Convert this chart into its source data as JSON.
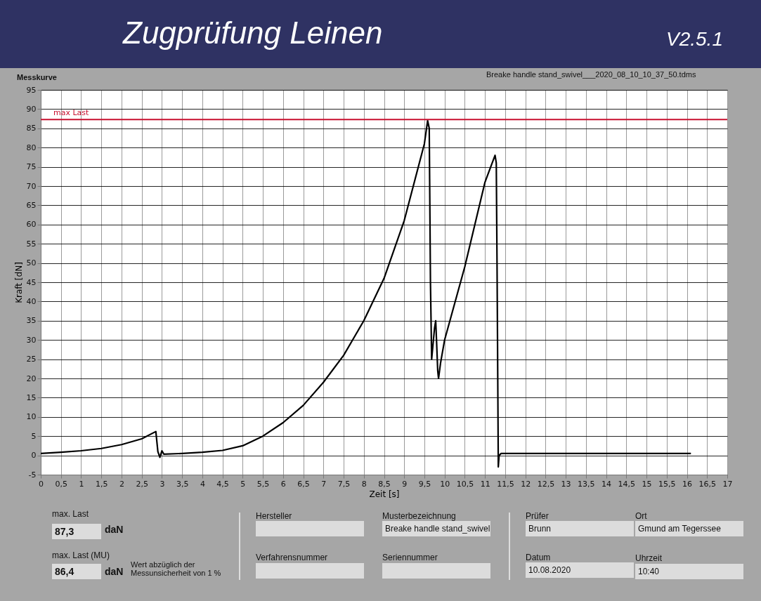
{
  "chart_data": {
    "type": "line",
    "title": "Zugprüfung Leinen",
    "xlabel": "Zeit [s]",
    "ylabel": "Kraft [dN]",
    "annotations": [
      "V2.5.1",
      "Messkurve",
      "Breake handle stand_swivel___2020_08_10_10_37_50.tdms",
      "max. Last",
      "87,3",
      "daN",
      "max. Last (MU)",
      "86,4",
      "daN",
      "Wert abzüglich der Messunsicherheit von 1 %",
      "Hersteller",
      "Musterbezeichnung",
      "Breake handle stand_swivel",
      "Prüfer",
      "Brunn",
      "Ort",
      "Gmund am Tegerssee",
      "Verfahrensnummer",
      "Seriennummer",
      "Datum",
      "10.08.2020",
      "Uhrzeit",
      "10:40"
    ],
    "x": [
      0,
      0.5,
      1,
      1.5,
      2,
      2.5,
      2.85,
      2.9,
      2.95,
      3.0,
      3.05,
      3.5,
      4,
      4.5,
      5,
      5.5,
      6,
      6.5,
      7,
      7.5,
      8,
      8.5,
      9,
      9.5,
      9.58,
      9.62,
      9.65,
      9.68,
      9.75,
      9.78,
      9.8,
      9.83,
      9.85,
      9.9,
      10,
      10.5,
      11,
      11.25,
      11.28,
      11.3,
      11.33,
      11.35,
      11.4,
      12,
      13,
      14,
      15,
      16.1
    ],
    "series": [
      {
        "color": "#000000",
        "values": [
          0.5,
          0.8,
          1.2,
          1.8,
          2.8,
          4.3,
          6.2,
          1,
          -0.5,
          1.2,
          0.3,
          0.5,
          0.8,
          1.3,
          2.5,
          5,
          8.5,
          13,
          19,
          26,
          35,
          46,
          61,
          81,
          87,
          85,
          45,
          25,
          33,
          35,
          30,
          22,
          20,
          24,
          30,
          49,
          71,
          78,
          76,
          48,
          -3,
          0,
          0.5,
          0.5,
          0.5,
          0.5,
          0.5,
          0.5
        ]
      }
    ],
    "xlim": [
      0,
      17
    ],
    "ylim": [
      -5,
      95
    ],
    "xticks": [
      0,
      {
        "value": 0.5,
        "label": "0,5"
      },
      1,
      {
        "value": 1.5,
        "label": "1,5"
      },
      2,
      {
        "value": 2.5,
        "label": "2,5"
      },
      3,
      {
        "value": 3.5,
        "label": "3,5"
      },
      4,
      {
        "value": 4.5,
        "label": "4,5"
      },
      5,
      {
        "value": 5.5,
        "label": "5,5"
      },
      6,
      {
        "value": 6.5,
        "label": "6,5"
      },
      7,
      {
        "value": 7.5,
        "label": "7,5"
      },
      8,
      {
        "value": 8.5,
        "label": "8,5"
      },
      9,
      {
        "value": 9.5,
        "label": "9,5"
      },
      10,
      {
        "value": 10.5,
        "label": "10,5"
      },
      11,
      {
        "value": 11.5,
        "label": "11,5"
      },
      12,
      {
        "value": 12.5,
        "label": "12,5"
      },
      13,
      {
        "value": 13.5,
        "label": "13,5"
      },
      14,
      {
        "value": 14.5,
        "label": "14,5"
      },
      15,
      {
        "value": 15.5,
        "label": "15,5"
      },
      16,
      {
        "value": 16.5,
        "label": "16,5"
      },
      17
    ],
    "yticks": [
      -5,
      0,
      5,
      10,
      15,
      20,
      25,
      30,
      35,
      40,
      45,
      50,
      55,
      60,
      65,
      70,
      75,
      80,
      85,
      90,
      95
    ],
    "ref_lines": [
      {
        "axis": "y",
        "value": 87.3,
        "label": "max Last",
        "color": "#c8102e"
      }
    ],
    "grid": true,
    "marker": "none",
    "line_style": "solid"
  }
}
